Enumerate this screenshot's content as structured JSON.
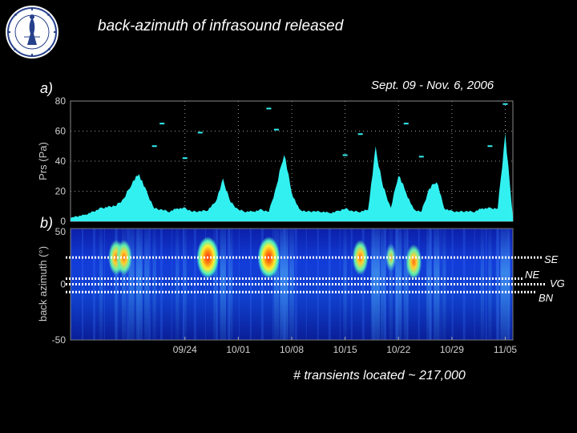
{
  "header": {
    "title": "back-azimuth of infrasound released",
    "footer": "# transients located ~ 217,000"
  },
  "colors": {
    "background": "#000000",
    "pressure_fill": "#33f0f0",
    "heatmap_base": "#0a2fd0",
    "heatmap_high": "#ff3010"
  },
  "chart_data": [
    {
      "type": "area",
      "panel_label": "a)",
      "annotation": "Sept. 09 - Nov. 6, 2006",
      "ylabel": "Prs (Pa)",
      "ylim": [
        0,
        80
      ],
      "yticks": [
        "0",
        "20",
        "40",
        "60",
        "80"
      ],
      "grid": "dotted horizontal and vertical",
      "x_range_days": [
        0,
        58
      ],
      "x": [
        0,
        2,
        4,
        6,
        7,
        8,
        9,
        10,
        11,
        12,
        13,
        14,
        15,
        16,
        17,
        18,
        19,
        20,
        21,
        22,
        23,
        24,
        25,
        26,
        27,
        28,
        29,
        30,
        31,
        32,
        33,
        34,
        35,
        36,
        37,
        38,
        39,
        40,
        41,
        42,
        43,
        44,
        45,
        46,
        47,
        48,
        49,
        50,
        51,
        52,
        53,
        54,
        55,
        56,
        57,
        58
      ],
      "values": [
        2,
        4,
        8,
        10,
        14,
        24,
        30,
        18,
        8,
        7,
        6,
        8,
        8,
        6,
        6,
        7,
        12,
        26,
        12,
        7,
        6,
        6,
        7,
        6,
        22,
        44,
        18,
        7,
        6,
        6,
        6,
        5,
        6,
        8,
        6,
        6,
        7,
        46,
        22,
        8,
        30,
        18,
        7,
        6,
        20,
        26,
        8,
        6,
        6,
        6,
        6,
        8,
        8,
        8,
        55,
        3
      ],
      "spikes": [
        [
          11,
          50
        ],
        [
          12,
          65
        ],
        [
          15,
          42
        ],
        [
          17,
          59
        ],
        [
          26,
          75
        ],
        [
          27,
          61
        ],
        [
          36,
          44
        ],
        [
          38,
          58
        ],
        [
          44,
          65
        ],
        [
          46,
          43
        ],
        [
          55,
          50
        ],
        [
          57,
          78
        ]
      ]
    },
    {
      "type": "heatmap",
      "panel_label": "b)",
      "ylabel": "back azimuth (°)",
      "ylim": [
        -50,
        50
      ],
      "yticks": [
        "50",
        "0",
        "-50"
      ],
      "xticks": [
        "09/24",
        "10/01",
        "10/08",
        "10/15",
        "10/22",
        "10/29",
        "11/05"
      ],
      "xtick_days": [
        15,
        22,
        29,
        36,
        43,
        50,
        57
      ],
      "hotspots": [
        {
          "day": 6,
          "az": 24,
          "level": "medium"
        },
        {
          "day": 7,
          "az": 24,
          "level": "medium"
        },
        {
          "day": 18,
          "az": 24,
          "level": "high"
        },
        {
          "day": 26,
          "az": 24,
          "level": "high"
        },
        {
          "day": 38,
          "az": 24,
          "level": "medium"
        },
        {
          "day": 42,
          "az": 24,
          "level": "low"
        },
        {
          "day": 45,
          "az": 20,
          "level": "medium"
        }
      ],
      "source_lines": [
        {
          "name": "SE",
          "az": 24
        },
        {
          "name": "NE",
          "az": 5
        },
        {
          "name": "VG",
          "az": 0
        },
        {
          "name": "BN",
          "az": -7
        }
      ]
    }
  ]
}
